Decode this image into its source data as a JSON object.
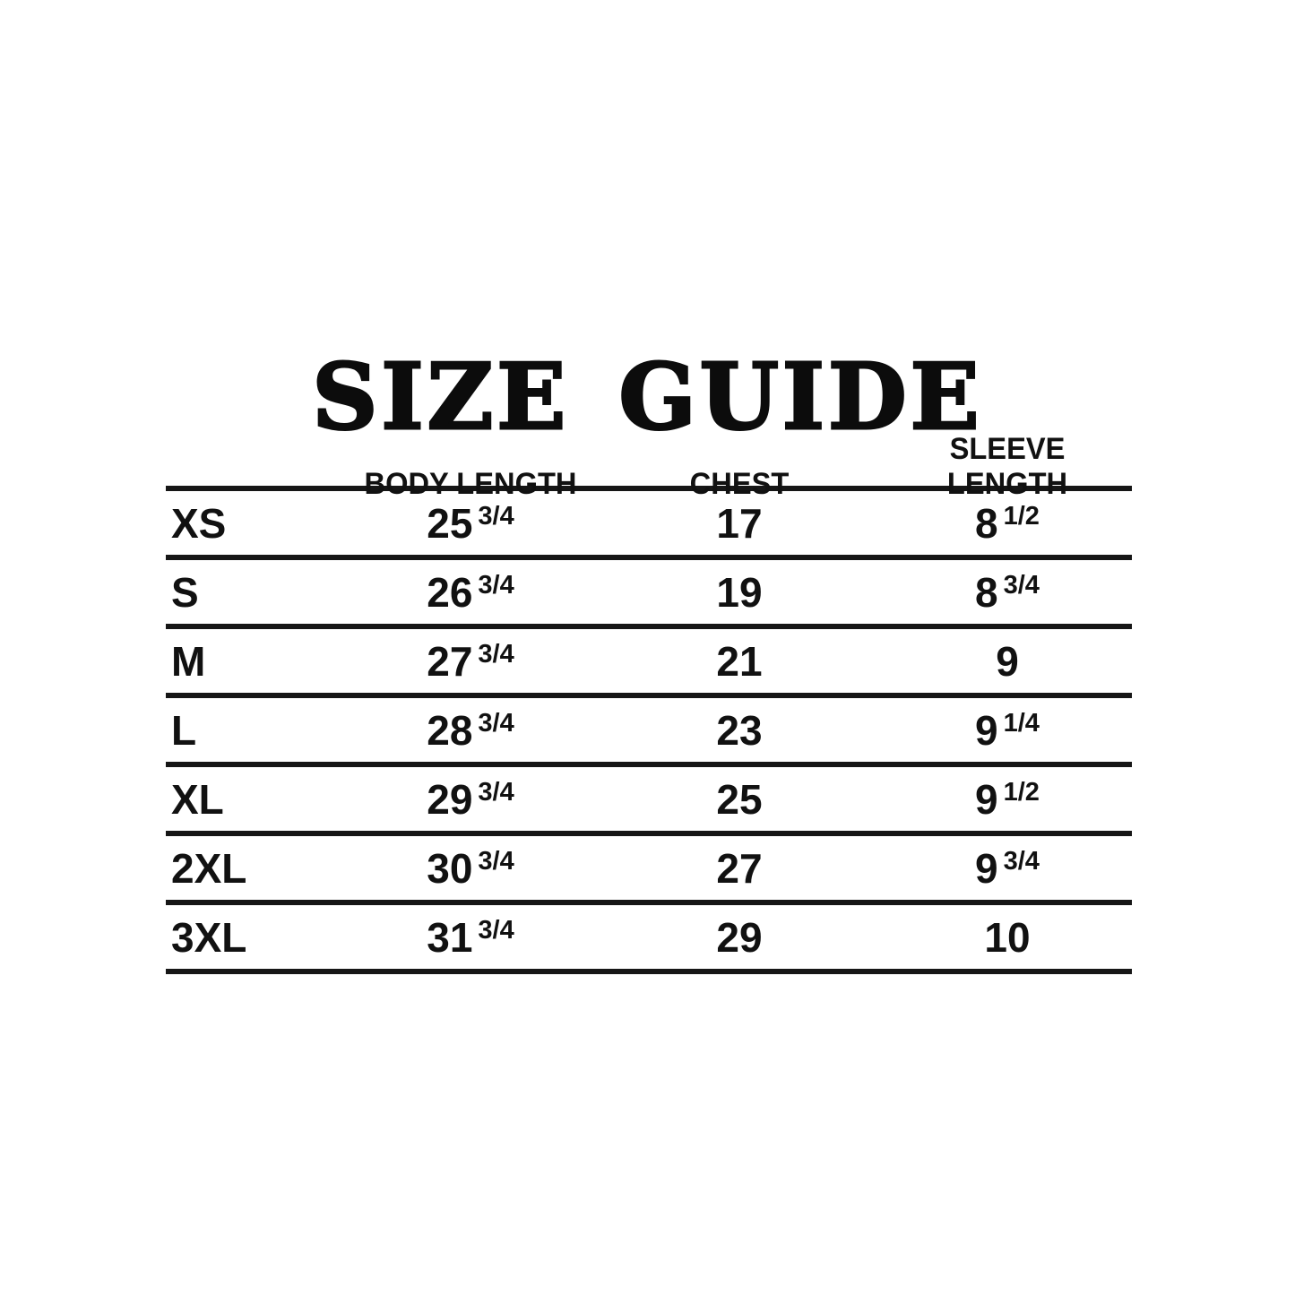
{
  "page": {
    "background": "#ffffff",
    "ink": "#0c0c0c",
    "line_color": "#161616"
  },
  "title": "SIZE GUIDE",
  "table": {
    "headers": [
      "",
      "BODY LENGTH",
      "CHEST",
      "SLEEVE LENGTH"
    ],
    "rows": [
      {
        "size": "XS",
        "body": {
          "whole": "25",
          "frac": "3/4"
        },
        "chest": {
          "whole": "17",
          "frac": ""
        },
        "sleeve": {
          "whole": "8",
          "frac": "1/2"
        }
      },
      {
        "size": "S",
        "body": {
          "whole": "26",
          "frac": "3/4"
        },
        "chest": {
          "whole": "19",
          "frac": ""
        },
        "sleeve": {
          "whole": "8",
          "frac": "3/4"
        }
      },
      {
        "size": "M",
        "body": {
          "whole": "27",
          "frac": "3/4"
        },
        "chest": {
          "whole": "21",
          "frac": ""
        },
        "sleeve": {
          "whole": "9",
          "frac": ""
        }
      },
      {
        "size": "L",
        "body": {
          "whole": "28",
          "frac": "3/4"
        },
        "chest": {
          "whole": "23",
          "frac": ""
        },
        "sleeve": {
          "whole": "9",
          "frac": "1/4"
        }
      },
      {
        "size": "XL",
        "body": {
          "whole": "29",
          "frac": "3/4"
        },
        "chest": {
          "whole": "25",
          "frac": ""
        },
        "sleeve": {
          "whole": "9",
          "frac": "1/2"
        }
      },
      {
        "size": "2XL",
        "body": {
          "whole": "30",
          "frac": "3/4"
        },
        "chest": {
          "whole": "27",
          "frac": ""
        },
        "sleeve": {
          "whole": "9",
          "frac": "3/4"
        }
      },
      {
        "size": "3XL",
        "body": {
          "whole": "31",
          "frac": "3/4"
        },
        "chest": {
          "whole": "29",
          "frac": ""
        },
        "sleeve": {
          "whole": "10",
          "frac": ""
        }
      }
    ]
  },
  "chart_data": {
    "type": "table",
    "title": "SIZE GUIDE",
    "columns": [
      "",
      "BODY LENGTH",
      "CHEST",
      "SLEEVE LENGTH"
    ],
    "rows": [
      [
        "XS",
        "25 3/4",
        "17",
        "8 1/2"
      ],
      [
        "S",
        "26 3/4",
        "19",
        "8 3/4"
      ],
      [
        "M",
        "27 3/4",
        "21",
        "9"
      ],
      [
        "L",
        "28 3/4",
        "23",
        "9 1/4"
      ],
      [
        "XL",
        "29 3/4",
        "25",
        "9 1/2"
      ],
      [
        "2XL",
        "30 3/4",
        "27",
        "9 3/4"
      ],
      [
        "3XL",
        "31 3/4",
        "29",
        "10"
      ]
    ],
    "layout": {
      "grid": "horizontal-rules-only",
      "units_shown": false
    }
  }
}
